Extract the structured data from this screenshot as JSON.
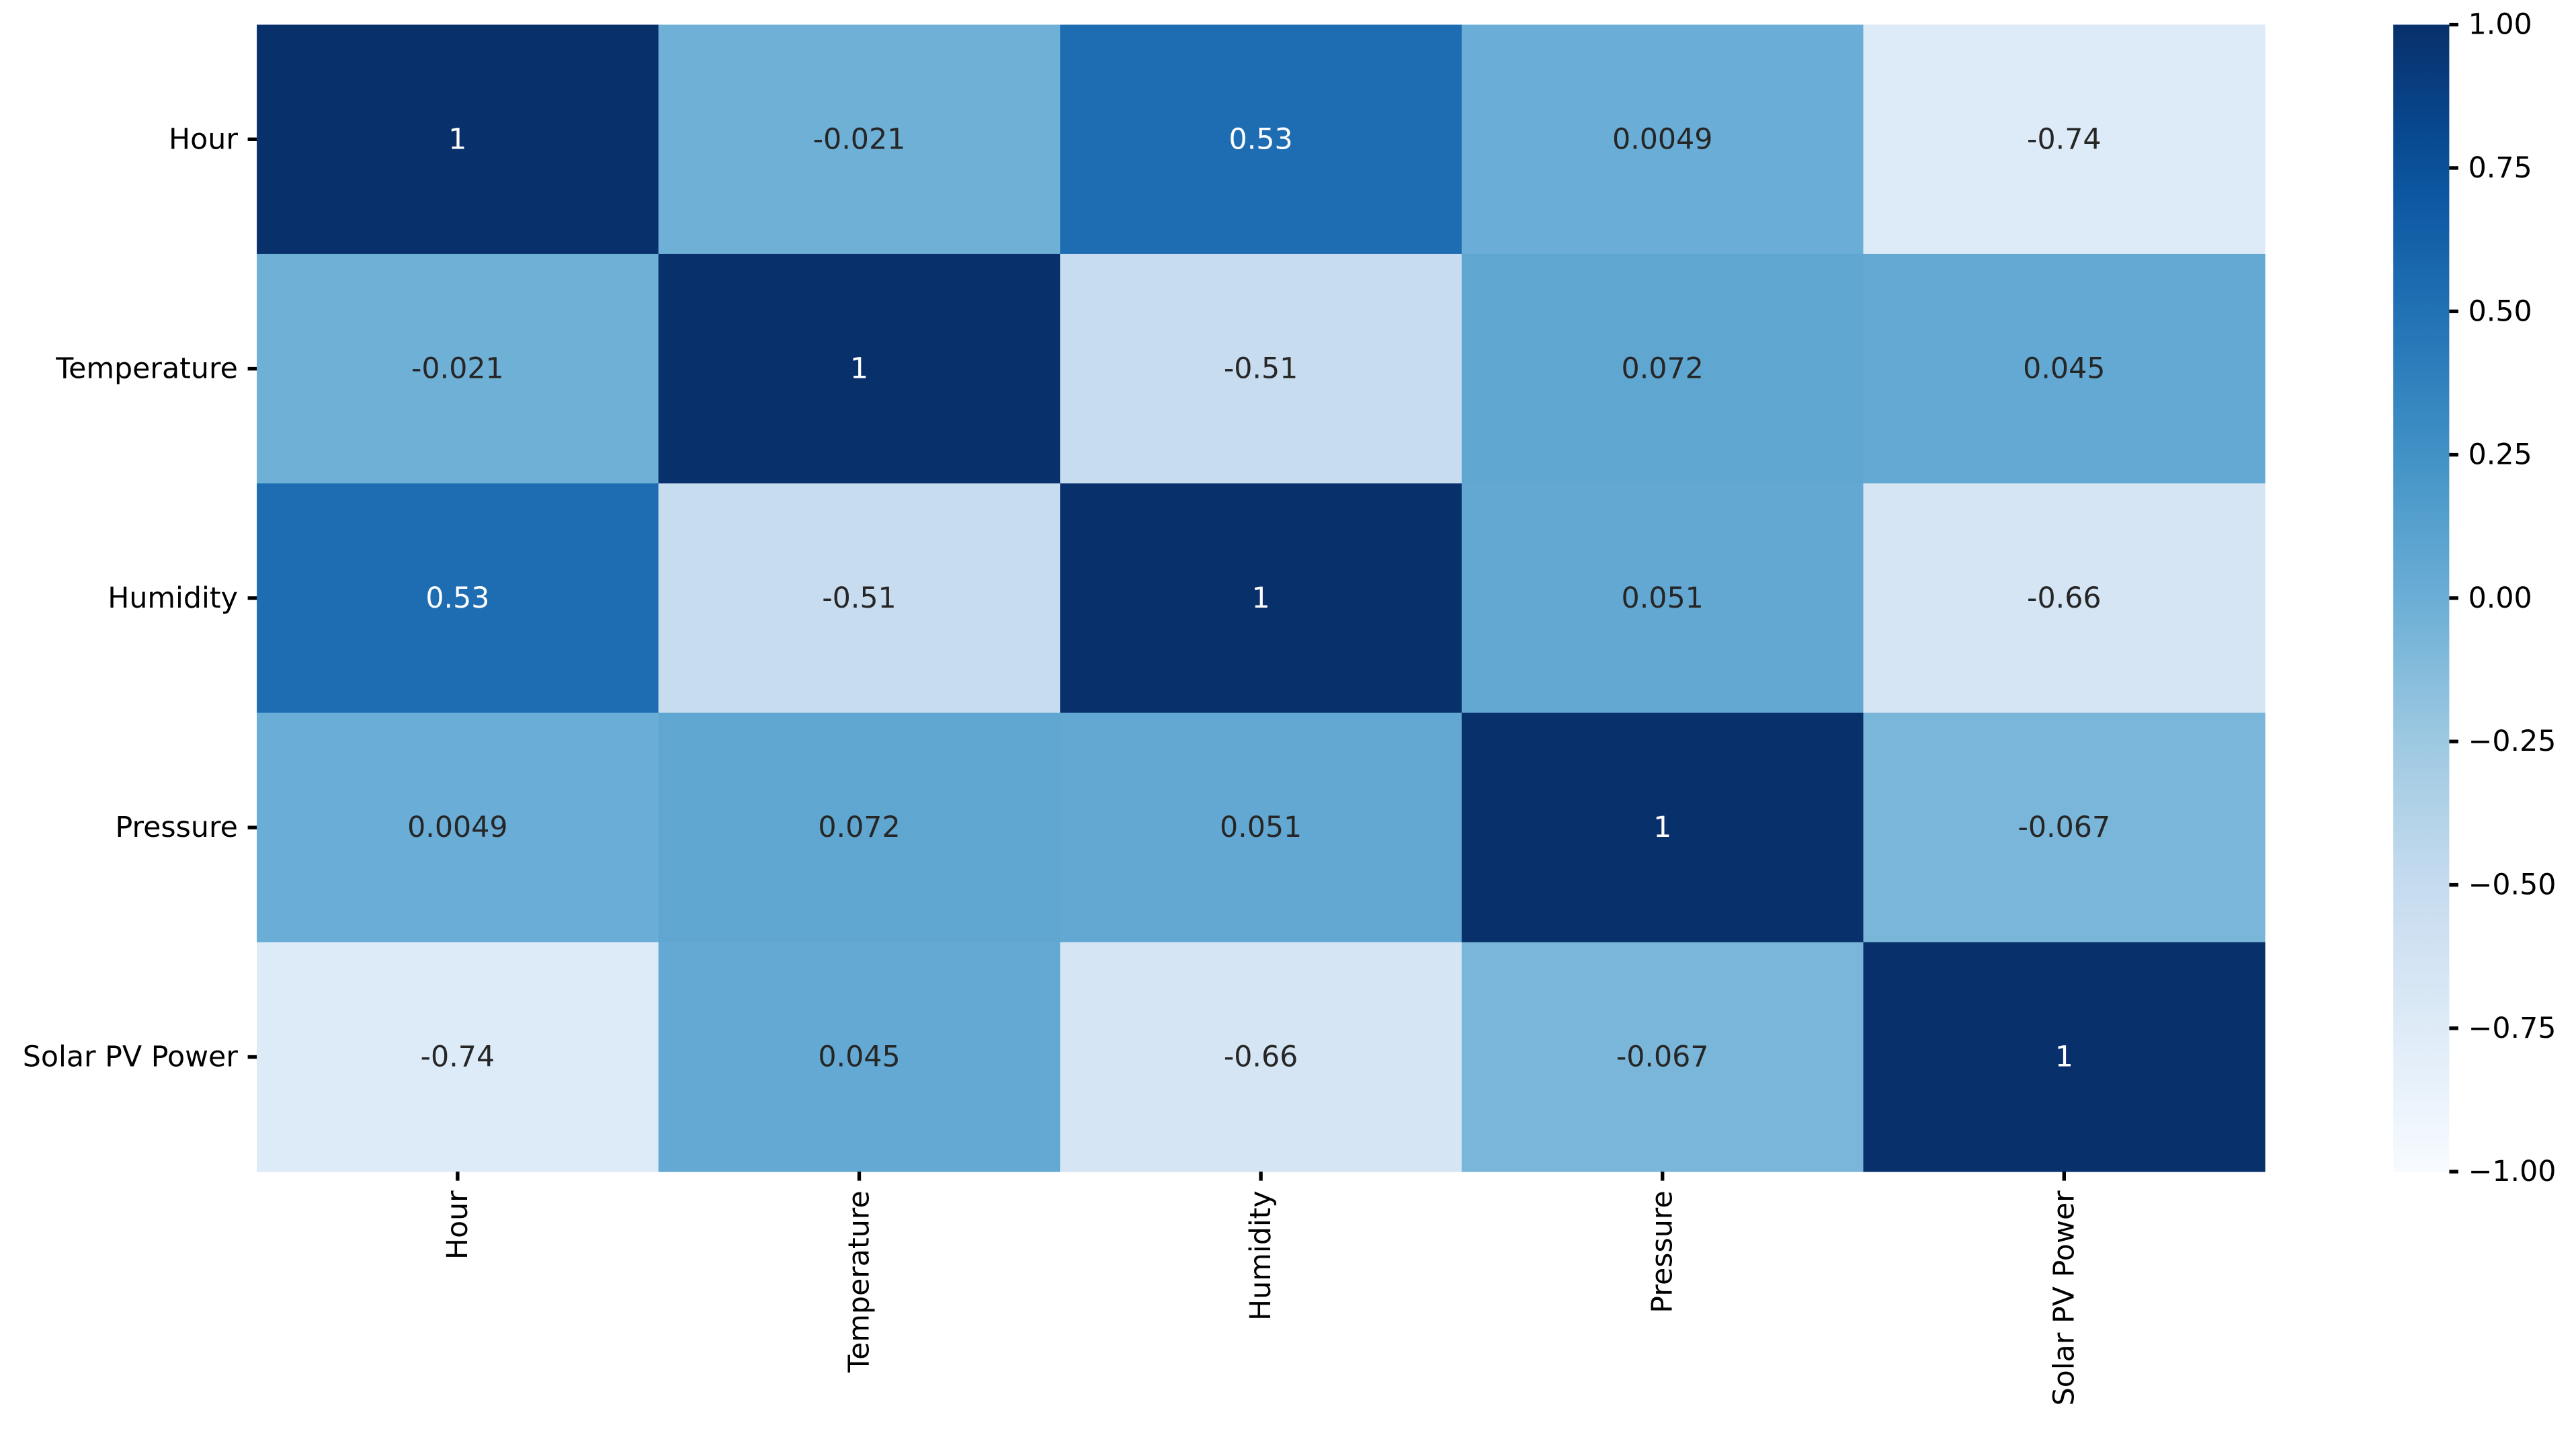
{
  "chart_data": {
    "type": "heatmap",
    "title": "",
    "xlabel": "",
    "ylabel": "",
    "x_labels": [
      "Hour",
      "Temperature",
      "Humidity",
      "Pressure",
      "Solar PV Power"
    ],
    "y_labels": [
      "Hour",
      "Temperature",
      "Humidity",
      "Pressure",
      "Solar PV Power"
    ],
    "values": [
      [
        1,
        -0.021,
        0.53,
        0.0049,
        -0.74
      ],
      [
        -0.021,
        1,
        -0.51,
        0.072,
        0.045
      ],
      [
        0.53,
        -0.51,
        1,
        0.051,
        -0.66
      ],
      [
        0.0049,
        0.072,
        0.051,
        1,
        -0.067
      ],
      [
        -0.74,
        0.045,
        -0.66,
        -0.067,
        1
      ]
    ],
    "annotations": [
      [
        "1",
        "-0.021",
        "0.53",
        "0.0049",
        "-0.74"
      ],
      [
        "-0.021",
        "1",
        "-0.51",
        "0.072",
        "0.045"
      ],
      [
        "0.53",
        "-0.51",
        "1",
        "0.051",
        "-0.66"
      ],
      [
        "0.0049",
        "0.072",
        "0.051",
        "1",
        "-0.067"
      ],
      [
        "-0.74",
        "0.045",
        "-0.66",
        "-0.067",
        "1"
      ]
    ],
    "colormap": "Blues",
    "vmin": -1,
    "vmax": 1,
    "colorbar": {
      "ticks": [
        1.0,
        0.75,
        0.5,
        0.25,
        0.0,
        -0.25,
        -0.5,
        -0.75,
        -1.0
      ],
      "tick_labels": [
        "1.00",
        "0.75",
        "0.50",
        "0.25",
        "0.00",
        "−0.25",
        "−0.50",
        "−0.75",
        "−1.00"
      ],
      "position": "right"
    },
    "grid": false
  }
}
